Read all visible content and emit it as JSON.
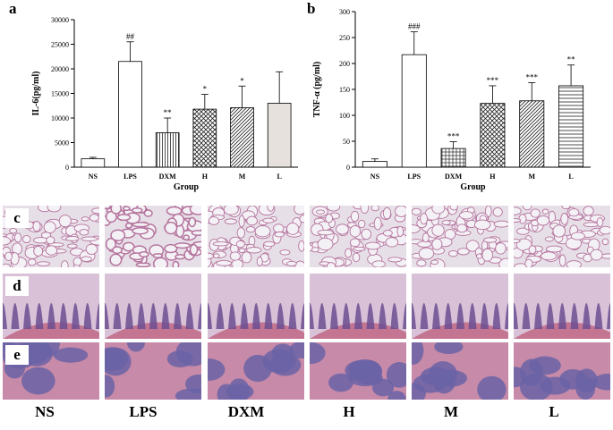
{
  "panels": {
    "a": "a",
    "b": "b",
    "c": "c",
    "d": "d",
    "e": "e"
  },
  "chart_data": [
    {
      "type": "bar",
      "panel": "a",
      "categories": [
        "NS",
        "LPS",
        "DXM",
        "H",
        "M",
        "L"
      ],
      "values": [
        1700,
        21500,
        7000,
        11800,
        12100,
        13000
      ],
      "errors": [
        300,
        4000,
        3000,
        3000,
        4400,
        6400
      ],
      "annotations": [
        "",
        "##",
        "**",
        "*",
        "*",
        ""
      ],
      "patterns": [
        "white",
        "white",
        "vlines",
        "cross",
        "diag",
        "grey"
      ],
      "xlabel": "Group",
      "ylabel": "IL-6(pg/ml)",
      "ylim": [
        0,
        30000
      ],
      "yticks": [
        "0",
        "5000",
        "10000",
        "15000",
        "20000",
        "25000",
        "30000"
      ]
    },
    {
      "type": "bar",
      "panel": "b",
      "categories": [
        "NS",
        "LPS",
        "DXM",
        "H",
        "M",
        "L"
      ],
      "values": [
        11,
        217,
        36,
        123,
        128,
        157
      ],
      "errors": [
        5,
        44,
        13,
        34,
        35,
        40
      ],
      "annotations": [
        "",
        "###",
        "***",
        "***",
        "***",
        "**"
      ],
      "patterns": [
        "white",
        "white",
        "grid",
        "cross",
        "diag",
        "hlines"
      ],
      "xlabel": "Group",
      "ylabel": "TNF-α (pg/ml)",
      "ylim": [
        0,
        300
      ],
      "yticks": [
        "0",
        "50",
        "100",
        "150",
        "200",
        "250",
        "300"
      ]
    }
  ],
  "column_labels": [
    "NS",
    "LPS",
    "DXM",
    "H",
    "M",
    "L"
  ],
  "tissue_colors": {
    "lung_bg": "#e7dfe8",
    "lung_wall": "#b5749d",
    "intestine_bg": "#d9c2d8",
    "mucosa": "#6b4f92",
    "muscle": "#c47591",
    "lymph_bg": "#c78aa8",
    "follicle": "#6a63a6"
  }
}
